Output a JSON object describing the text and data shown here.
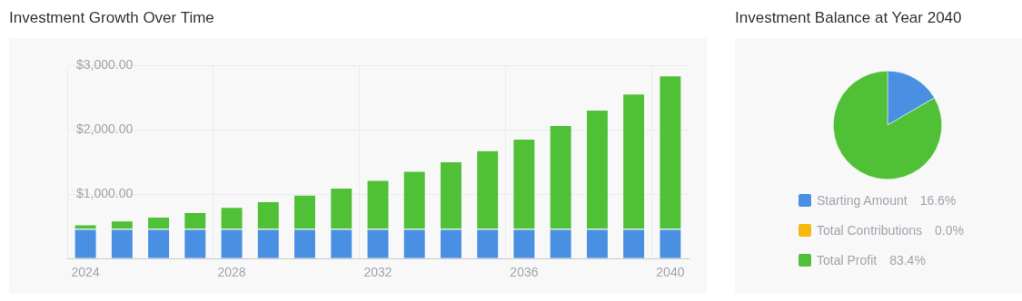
{
  "chart_data": [
    {
      "type": "bar",
      "title": "Investment Growth Over Time",
      "stacked": true,
      "grid": true,
      "legend": false,
      "categories": [
        "2024",
        null,
        null,
        null,
        "2028",
        null,
        null,
        null,
        "2032",
        null,
        null,
        null,
        "2036",
        null,
        null,
        null,
        "2040"
      ],
      "series": [
        {
          "color": "#4a90e2",
          "values": [
            460,
            460,
            460,
            460,
            460,
            460,
            460,
            460,
            460,
            460,
            460,
            460,
            460,
            460,
            460,
            460,
            460
          ]
        },
        {
          "color": "#50c136",
          "values": [
            70,
            130,
            190,
            260,
            340,
            430,
            530,
            640,
            760,
            900,
            1050,
            1220,
            1400,
            1610,
            1850,
            2100,
            2380
          ]
        }
      ],
      "ylim": [
        0,
        3000
      ],
      "yticks": [
        {
          "value": 0,
          "label": null
        },
        {
          "value": 1000,
          "label": "$1,000.00"
        },
        {
          "value": 2000,
          "label": "$2,000.00"
        },
        {
          "value": 3000,
          "label": "$3,000.00"
        }
      ]
    },
    {
      "type": "pie",
      "title": "Investment Balance at Year 2040",
      "legend": "bottom",
      "categories": [
        "Starting Amount",
        "Total Contributions",
        "Total Profit"
      ],
      "values": [
        16.6,
        0.0,
        83.4
      ],
      "colors": [
        "#4a90e2",
        "#f5b90f",
        "#50c136"
      ],
      "value_labels": [
        "16.6%",
        "0.0%",
        "83.4%"
      ]
    }
  ]
}
